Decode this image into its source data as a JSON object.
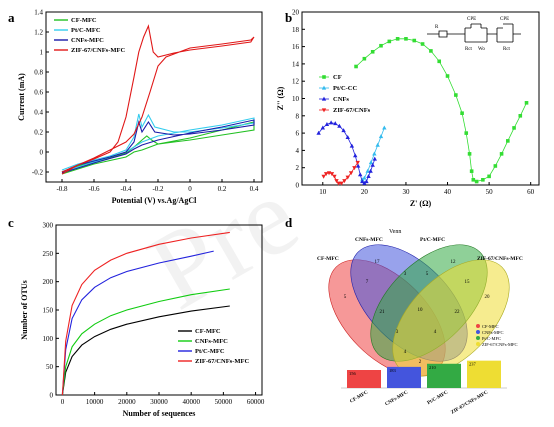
{
  "chart_data": [
    {
      "panel": "a",
      "type": "line",
      "xlabel": "Potential (V) vs.Ag/AgCl",
      "ylabel": "Current (mA)",
      "xlim": [
        -0.9,
        0.45
      ],
      "ylim": [
        -0.3,
        1.4
      ],
      "xticks": [
        -0.8,
        -0.6,
        -0.4,
        -0.2,
        0.0,
        0.2,
        0.4
      ],
      "yticks": [
        -0.2,
        0.0,
        0.2,
        0.4,
        0.6,
        0.8,
        1.0,
        1.2,
        1.4
      ],
      "legend_position": "top-left",
      "series": [
        {
          "name": "CF-MFC",
          "color": "#22c022",
          "points": [
            [
              -0.8,
              -0.2
            ],
            [
              -0.7,
              -0.14
            ],
            [
              -0.6,
              -0.1
            ],
            [
              -0.5,
              -0.06
            ],
            [
              -0.4,
              -0.01
            ],
            [
              -0.35,
              0.05
            ],
            [
              -0.3,
              0.12
            ],
            [
              -0.27,
              0.16
            ],
            [
              -0.24,
              0.12
            ],
            [
              -0.2,
              0.08
            ],
            [
              -0.1,
              0.1
            ],
            [
              0.0,
              0.12
            ],
            [
              0.2,
              0.17
            ],
            [
              0.4,
              0.22
            ],
            [
              0.4,
              0.3
            ],
            [
              0.2,
              0.22
            ],
            [
              0.0,
              0.14
            ],
            [
              -0.2,
              0.08
            ],
            [
              -0.25,
              0.05
            ],
            [
              -0.3,
              0.02
            ],
            [
              -0.35,
              0.0
            ],
            [
              -0.4,
              -0.05
            ],
            [
              -0.6,
              -0.12
            ],
            [
              -0.8,
              -0.22
            ]
          ]
        },
        {
          "name": "Pt/C-MFC",
          "color": "#33ccee",
          "points": [
            [
              -0.8,
              -0.18
            ],
            [
              -0.7,
              -0.12
            ],
            [
              -0.6,
              -0.08
            ],
            [
              -0.5,
              -0.04
            ],
            [
              -0.4,
              0.02
            ],
            [
              -0.35,
              0.15
            ],
            [
              -0.32,
              0.38
            ],
            [
              -0.3,
              0.25
            ],
            [
              -0.26,
              0.37
            ],
            [
              -0.22,
              0.25
            ],
            [
              -0.1,
              0.2
            ],
            [
              0.0,
              0.2
            ],
            [
              0.2,
              0.24
            ],
            [
              0.4,
              0.29
            ],
            [
              0.4,
              0.34
            ],
            [
              0.2,
              0.27
            ],
            [
              0.0,
              0.22
            ],
            [
              -0.2,
              0.16
            ],
            [
              -0.3,
              0.1
            ],
            [
              -0.35,
              0.05
            ],
            [
              -0.4,
              0.0
            ],
            [
              -0.6,
              -0.1
            ],
            [
              -0.8,
              -0.2
            ]
          ]
        },
        {
          "name": "CNFs-MFC",
          "color": "#1a1aa8",
          "points": [
            [
              -0.8,
              -0.2
            ],
            [
              -0.7,
              -0.13
            ],
            [
              -0.6,
              -0.09
            ],
            [
              -0.5,
              -0.05
            ],
            [
              -0.4,
              0.0
            ],
            [
              -0.35,
              0.1
            ],
            [
              -0.32,
              0.3
            ],
            [
              -0.3,
              0.2
            ],
            [
              -0.26,
              0.3
            ],
            [
              -0.22,
              0.2
            ],
            [
              -0.1,
              0.17
            ],
            [
              0.0,
              0.18
            ],
            [
              0.2,
              0.22
            ],
            [
              0.4,
              0.27
            ],
            [
              0.4,
              0.32
            ],
            [
              0.2,
              0.25
            ],
            [
              0.0,
              0.19
            ],
            [
              -0.2,
              0.12
            ],
            [
              -0.3,
              0.07
            ],
            [
              -0.35,
              0.03
            ],
            [
              -0.4,
              -0.02
            ],
            [
              -0.6,
              -0.11
            ],
            [
              -0.8,
              -0.21
            ]
          ]
        },
        {
          "name": "ZIF-67/CNFs-MFC",
          "color": "#e01818",
          "points": [
            [
              -0.8,
              -0.22
            ],
            [
              -0.7,
              -0.13
            ],
            [
              -0.6,
              -0.07
            ],
            [
              -0.5,
              0.0
            ],
            [
              -0.45,
              0.1
            ],
            [
              -0.4,
              0.35
            ],
            [
              -0.35,
              0.75
            ],
            [
              -0.32,
              1.0
            ],
            [
              -0.29,
              1.15
            ],
            [
              -0.26,
              1.26
            ],
            [
              -0.23,
              1.0
            ],
            [
              -0.2,
              0.95
            ],
            [
              -0.1,
              0.99
            ],
            [
              0.0,
              1.02
            ],
            [
              0.2,
              1.06
            ],
            [
              0.38,
              1.1
            ],
            [
              0.4,
              1.15
            ],
            [
              0.38,
              1.12
            ],
            [
              0.2,
              1.08
            ],
            [
              0.0,
              1.04
            ],
            [
              -0.15,
              0.95
            ],
            [
              -0.2,
              0.86
            ],
            [
              -0.25,
              0.6
            ],
            [
              -0.3,
              0.35
            ],
            [
              -0.35,
              0.18
            ],
            [
              -0.4,
              0.1
            ],
            [
              -0.5,
              0.02
            ],
            [
              -0.6,
              -0.06
            ],
            [
              -0.8,
              -0.2
            ]
          ]
        }
      ]
    },
    {
      "panel": "b",
      "type": "scatter",
      "xlabel": "Z' (Ω)",
      "ylabel": "Z'' (Ω)",
      "xlim": [
        5,
        62
      ],
      "ylim": [
        0,
        20
      ],
      "xticks": [
        10,
        20,
        30,
        40,
        50,
        60
      ],
      "yticks": [
        0,
        2,
        4,
        6,
        8,
        10,
        12,
        14,
        16,
        18,
        20
      ],
      "legend_position": "left",
      "circuit_labels": [
        "R",
        "CPE",
        "CPE",
        "Rct",
        "Rct",
        "Wo"
      ],
      "series": [
        {
          "name": "CF",
          "color": "#33dd33",
          "marker": "square",
          "points": [
            [
              18,
              13.7
            ],
            [
              20,
              14.6
            ],
            [
              22,
              15.4
            ],
            [
              24,
              16.1
            ],
            [
              26,
              16.6
            ],
            [
              28,
              16.9
            ],
            [
              30,
              16.9
            ],
            [
              32,
              16.7
            ],
            [
              34,
              16.3
            ],
            [
              36,
              15.5
            ],
            [
              38,
              14.3
            ],
            [
              40,
              12.6
            ],
            [
              42,
              10.4
            ],
            [
              43.5,
              8.3
            ],
            [
              44.5,
              6.0
            ],
            [
              45.3,
              3.6
            ],
            [
              45.8,
              1.6
            ],
            [
              46.2,
              0.6
            ],
            [
              47,
              0.4
            ],
            [
              48.5,
              0.6
            ],
            [
              50,
              1.0
            ],
            [
              51.5,
              2.2
            ],
            [
              53,
              3.6
            ],
            [
              54.5,
              5.1
            ],
            [
              56,
              6.6
            ],
            [
              57.5,
              8.0
            ],
            [
              59,
              9.5
            ]
          ]
        },
        {
          "name": "Pt/C-CC",
          "color": "#33bbee",
          "marker": "triangle-up",
          "points": [
            [
              19.5,
              0.6
            ],
            [
              20,
              0.8
            ],
            [
              20.8,
              1.6
            ],
            [
              21.6,
              2.6
            ],
            [
              22.4,
              3.6
            ],
            [
              23.2,
              4.6
            ],
            [
              24,
              5.6
            ],
            [
              24.8,
              6.6
            ]
          ]
        },
        {
          "name": "CNFs",
          "color": "#2222dd",
          "marker": "triangle-up",
          "points": [
            [
              9,
              6.0
            ],
            [
              10,
              6.6
            ],
            [
              11,
              7.0
            ],
            [
              12,
              7.2
            ],
            [
              13,
              7.1
            ],
            [
              14,
              6.8
            ],
            [
              15,
              6.3
            ],
            [
              16,
              5.5
            ],
            [
              17,
              4.5
            ],
            [
              17.8,
              3.4
            ],
            [
              18.5,
              2.2
            ],
            [
              19,
              1.2
            ],
            [
              19.5,
              0.4
            ],
            [
              20,
              0.2
            ],
            [
              20.5,
              0.4
            ],
            [
              21,
              1.0
            ],
            [
              21.5,
              1.6
            ],
            [
              22,
              2.3
            ],
            [
              22.5,
              3.0
            ]
          ]
        },
        {
          "name": "ZIF-67/CNFs",
          "color": "#ee2222",
          "marker": "triangle-down",
          "points": [
            [
              10.2,
              1.0
            ],
            [
              10.8,
              1.3
            ],
            [
              11.5,
              1.4
            ],
            [
              12.2,
              1.3
            ],
            [
              12.8,
              1.0
            ],
            [
              13.3,
              0.5
            ],
            [
              13.8,
              0.2
            ],
            [
              14.5,
              0.2
            ],
            [
              15.2,
              0.5
            ],
            [
              16,
              0.9
            ],
            [
              16.8,
              1.4
            ],
            [
              17.6,
              2.0
            ],
            [
              18.4,
              2.6
            ]
          ]
        }
      ]
    },
    {
      "panel": "c",
      "type": "line",
      "xlabel": "Number of sequences",
      "ylabel": "Number of OTUs",
      "xlim": [
        -2000,
        62000
      ],
      "ylim": [
        0,
        300
      ],
      "xticks": [
        0,
        10000,
        20000,
        30000,
        40000,
        50000,
        60000
      ],
      "yticks": [
        0,
        50,
        100,
        150,
        200,
        250,
        300
      ],
      "legend_position": "bottom-right",
      "series": [
        {
          "name": "CF-MFC",
          "color": "#000000",
          "points": [
            [
              0,
              0
            ],
            [
              1000,
              40
            ],
            [
              3000,
              68
            ],
            [
              6000,
              88
            ],
            [
              10000,
              103
            ],
            [
              15000,
              116
            ],
            [
              20000,
              125
            ],
            [
              30000,
              138
            ],
            [
              40000,
              148
            ],
            [
              52000,
              157
            ]
          ]
        },
        {
          "name": "CNFs-MFC",
          "color": "#11cc11",
          "points": [
            [
              0,
              0
            ],
            [
              1000,
              50
            ],
            [
              3000,
              85
            ],
            [
              6000,
              108
            ],
            [
              10000,
              125
            ],
            [
              15000,
              140
            ],
            [
              20000,
              150
            ],
            [
              30000,
              165
            ],
            [
              40000,
              177
            ],
            [
              52000,
              187
            ]
          ]
        },
        {
          "name": "Pt/C-MFC",
          "color": "#2222dd",
          "points": [
            [
              0,
              0
            ],
            [
              1000,
              80
            ],
            [
              3000,
              135
            ],
            [
              6000,
              168
            ],
            [
              10000,
              190
            ],
            [
              15000,
              207
            ],
            [
              20000,
              218
            ],
            [
              30000,
              233
            ],
            [
              40000,
              245
            ],
            [
              47000,
              254
            ]
          ]
        },
        {
          "name": "ZIF-67/CNFs-MFC",
          "color": "#ee2222",
          "points": [
            [
              0,
              0
            ],
            [
              1000,
              95
            ],
            [
              3000,
              158
            ],
            [
              6000,
              195
            ],
            [
              10000,
              220
            ],
            [
              15000,
              238
            ],
            [
              20000,
              250
            ],
            [
              30000,
              266
            ],
            [
              40000,
              277
            ],
            [
              52000,
              287
            ]
          ]
        }
      ]
    },
    {
      "panel": "d",
      "type": "bar",
      "title": "Venn",
      "venn_set_names": [
        "CF-MFC",
        "CNFs-MFC",
        "Pt/C-MFC",
        "ZIF-67/CNFs-MFC"
      ],
      "categories": [
        "CF-MFC",
        "CNFs-MFC",
        "Pt/C-MFC",
        "ZIF-67/CNFs-MFC"
      ],
      "values": [
        156,
        183,
        210,
        237
      ],
      "colors": [
        "#ee4444",
        "#4455dd",
        "#33aa44",
        "#eedd33"
      ],
      "venn_region_counts": [
        "5",
        "17",
        "12",
        "20",
        "7",
        "3",
        "5",
        "15",
        "21",
        "10",
        "22",
        "3",
        "4",
        "4",
        "2"
      ]
    }
  ]
}
